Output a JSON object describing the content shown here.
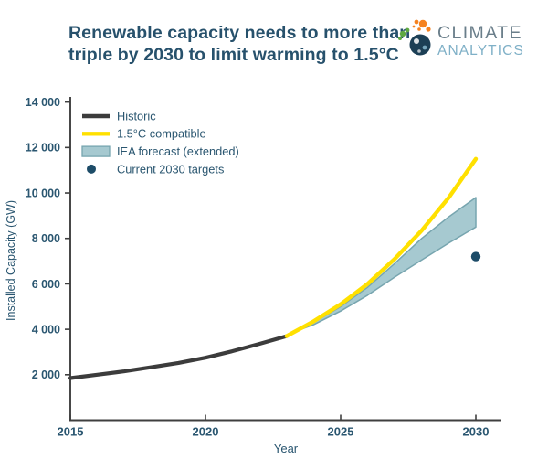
{
  "header": {
    "title_line1": "Renewable capacity needs to more than",
    "title_line2": "triple by 2030 to limit warming to 1.5°C",
    "title_color": "#27516C"
  },
  "logo": {
    "word1": "CLIMATE",
    "word2": "ANALYTICS",
    "word1_color": "#6A7E8A",
    "word2_color": "#7FB0C7",
    "icon_green": "#5FA941",
    "icon_orange": "#F5821F",
    "icon_navy": "#1C3F55"
  },
  "chart_data": {
    "type": "line",
    "xlabel": "Year",
    "ylabel": "Installed Capacity (GW)",
    "xlim": [
      2015,
      2031
    ],
    "ylim": [
      0,
      14000
    ],
    "x_ticks": [
      2015,
      2020,
      2025,
      2030
    ],
    "y_ticks": [
      {
        "value": 2000,
        "label": "2 000"
      },
      {
        "value": 4000,
        "label": "4 000"
      },
      {
        "value": 6000,
        "label": "6 000"
      },
      {
        "value": 8000,
        "label": "8 000"
      },
      {
        "value": 10000,
        "label": "10 000"
      },
      {
        "value": 12000,
        "label": "12 000"
      },
      {
        "value": 14000,
        "label": "14 000"
      }
    ],
    "text_color": "#2A5670",
    "axis_color": "#3F3F3F",
    "legend_position": "upper-left",
    "grid": false,
    "legend": [
      {
        "label": "Historic",
        "type": "line",
        "color": "#3C3C3C"
      },
      {
        "label": "1.5°C compatible",
        "type": "line",
        "color": "#FFE000"
      },
      {
        "label": "IEA forecast (extended)",
        "type": "band",
        "fill": "#A6C9D0",
        "stroke": "#77A5AF"
      },
      {
        "label": "Current 2030 targets",
        "type": "point",
        "color": "#1D4C68"
      }
    ],
    "series": [
      {
        "name": "Historic",
        "type": "line",
        "color": "#3C3C3C",
        "width": 4.2,
        "points": [
          [
            2015,
            1850
          ],
          [
            2016,
            2000
          ],
          [
            2017,
            2150
          ],
          [
            2018,
            2330
          ],
          [
            2019,
            2520
          ],
          [
            2020,
            2750
          ],
          [
            2021,
            3040
          ],
          [
            2022,
            3360
          ],
          [
            2023,
            3700
          ]
        ]
      },
      {
        "name": "1.5°C compatible",
        "type": "line",
        "color": "#FFE000",
        "width": 4.4,
        "points": [
          [
            2023,
            3700
          ],
          [
            2024,
            4350
          ],
          [
            2025,
            5100
          ],
          [
            2026,
            6000
          ],
          [
            2027,
            7100
          ],
          [
            2028,
            8350
          ],
          [
            2029,
            9800
          ],
          [
            2030,
            11500
          ]
        ]
      },
      {
        "name": "IEA forecast (extended)",
        "type": "band",
        "fill": "#A6C9D0",
        "stroke": "#77A5AF",
        "top": [
          [
            2023.5,
            3980
          ],
          [
            2024,
            4300
          ],
          [
            2025,
            5000
          ],
          [
            2026,
            5850
          ],
          [
            2027,
            6900
          ],
          [
            2028,
            8000
          ],
          [
            2029,
            8950
          ],
          [
            2030,
            9800
          ]
        ],
        "bottom": [
          [
            2023.5,
            3980
          ],
          [
            2024,
            4200
          ],
          [
            2025,
            4800
          ],
          [
            2026,
            5500
          ],
          [
            2027,
            6300
          ],
          [
            2028,
            7050
          ],
          [
            2029,
            7800
          ],
          [
            2030,
            8500
          ]
        ]
      },
      {
        "name": "Current 2030 targets",
        "type": "point",
        "color": "#1D4C68",
        "radius": 5.2,
        "points": [
          [
            2030,
            7200
          ]
        ]
      }
    ]
  }
}
